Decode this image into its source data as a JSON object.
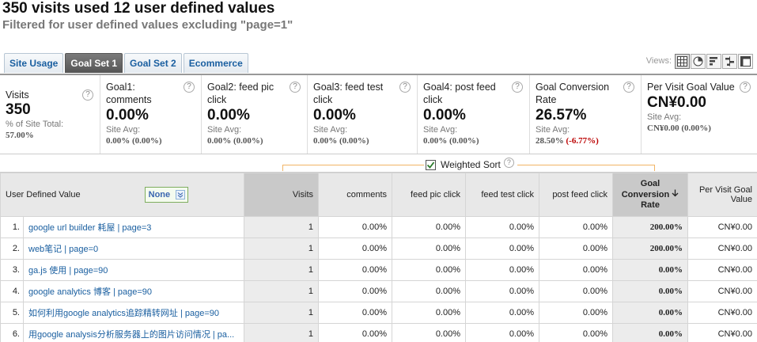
{
  "header": {
    "title": "350 visits used 12 user defined values",
    "subtitle": "Filtered for user defined values excluding \"page=1\""
  },
  "tabs": [
    {
      "label": "Site Usage",
      "active": false
    },
    {
      "label": "Goal Set 1",
      "active": true
    },
    {
      "label": "Goal Set 2",
      "active": false
    },
    {
      "label": "Ecommerce",
      "active": false
    }
  ],
  "views": {
    "label": "Views:",
    "options": [
      "table-view-icon",
      "pie-view-icon",
      "bar-view-icon",
      "comparison-view-icon",
      "pivot-view-icon"
    ],
    "active": "table-view-icon"
  },
  "summary": {
    "visits": {
      "title": "Visits",
      "value": "350",
      "sub": "% of Site Total:",
      "pct": "57.00%"
    },
    "goals": [
      {
        "title": "Goal1: comments",
        "value": "0.00%",
        "avg_label": "Site Avg:",
        "avg": "0.00% (0.00%)"
      },
      {
        "title": "Goal2: feed pic click",
        "value": "0.00%",
        "avg_label": "Site Avg:",
        "avg": "0.00% (0.00%)"
      },
      {
        "title": "Goal3: feed test click",
        "value": "0.00%",
        "avg_label": "Site Avg:",
        "avg": "0.00% (0.00%)"
      },
      {
        "title": "Goal4: post feed click",
        "value": "0.00%",
        "avg_label": "Site Avg:",
        "avg": "0.00% (0.00%)"
      }
    ],
    "conversion": {
      "title": "Goal Conversion Rate",
      "value": "26.57%",
      "avg_label": "Site Avg:",
      "avg": "28.50%",
      "delta": "(-6.77%)"
    },
    "per_visit": {
      "title": "Per Visit Goal Value",
      "value": "CN¥0.00",
      "avg_label": "Site Avg:",
      "avg": "CN¥0.00 (0.00%)"
    }
  },
  "weighted_sort": {
    "label": "Weighted Sort",
    "checked": true
  },
  "table": {
    "headers": {
      "udv": "User Defined Value",
      "segment": "None",
      "visits": "Visits",
      "comments": "comments",
      "feed_pic": "feed pic click",
      "feed_test": "feed test click",
      "post_feed": "post feed click",
      "conv_line1": "Goal",
      "conv_line2": "Conversion",
      "conv_line3": "Rate",
      "per_visit": "Per Visit Goal Value"
    },
    "rows": [
      {
        "rank": "1.",
        "value": "google url builder 耗屋 | page=3",
        "visits": "1",
        "comments": "0.00%",
        "feed_pic": "0.00%",
        "feed_test": "0.00%",
        "post_feed": "0.00%",
        "conv": "200.00%",
        "per_visit": "CN¥0.00"
      },
      {
        "rank": "2.",
        "value": "web笔记 | page=0",
        "visits": "1",
        "comments": "0.00%",
        "feed_pic": "0.00%",
        "feed_test": "0.00%",
        "post_feed": "0.00%",
        "conv": "200.00%",
        "per_visit": "CN¥0.00"
      },
      {
        "rank": "3.",
        "value": "ga.js 使用 | page=90",
        "visits": "1",
        "comments": "0.00%",
        "feed_pic": "0.00%",
        "feed_test": "0.00%",
        "post_feed": "0.00%",
        "conv": "0.00%",
        "per_visit": "CN¥0.00"
      },
      {
        "rank": "4.",
        "value": "google analytics 博客 | page=90",
        "visits": "1",
        "comments": "0.00%",
        "feed_pic": "0.00%",
        "feed_test": "0.00%",
        "post_feed": "0.00%",
        "conv": "0.00%",
        "per_visit": "CN¥0.00"
      },
      {
        "rank": "5.",
        "value": "如何利用google analytics追踪精转网址 | page=90",
        "visits": "1",
        "comments": "0.00%",
        "feed_pic": "0.00%",
        "feed_test": "0.00%",
        "post_feed": "0.00%",
        "conv": "0.00%",
        "per_visit": "CN¥0.00"
      },
      {
        "rank": "6.",
        "value": "用google analysis分析服务器上的图片访问情况 | pa...",
        "visits": "1",
        "comments": "0.00%",
        "feed_pic": "0.00%",
        "feed_test": "0.00%",
        "post_feed": "0.00%",
        "conv": "0.00%",
        "per_visit": "CN¥0.00"
      }
    ]
  }
}
